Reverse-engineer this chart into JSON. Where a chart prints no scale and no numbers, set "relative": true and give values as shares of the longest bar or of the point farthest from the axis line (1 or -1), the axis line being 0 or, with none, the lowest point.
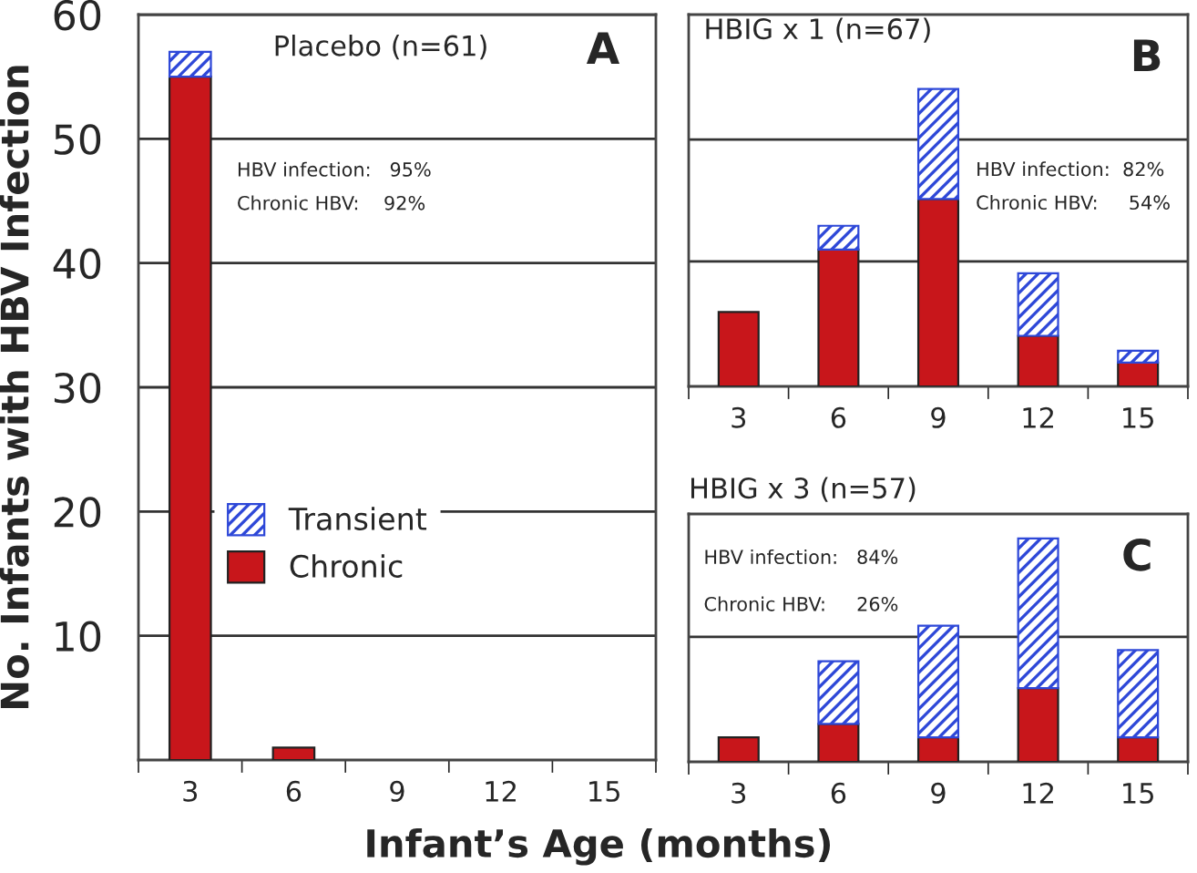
{
  "chart_data": [
    {
      "type": "bar",
      "title": "Placebo (n=61)",
      "xlabel": "Infant’s Age (months)",
      "ylabel": "No. Infants with HBV Infection",
      "categories": [
        "3",
        "6",
        "9",
        "12",
        "15"
      ],
      "stacked": true,
      "series": [
        {
          "name": "Chronic",
          "color": "#c8161b",
          "values": [
            55,
            1,
            0,
            0,
            0
          ]
        },
        {
          "name": "Transient",
          "color": "#2e48d8",
          "values": [
            2,
            0,
            0,
            0,
            0
          ]
        }
      ],
      "ylim": [
        0,
        60
      ],
      "yticks": [
        10,
        20,
        30,
        40,
        50,
        60
      ],
      "grid": "y",
      "legend": "lower left",
      "annotations": [
        "A",
        "HBV infection:   95%",
        "Chronic HBV:    92%"
      ]
    },
    {
      "type": "bar",
      "title": "HBIG x 1 (n=67)",
      "categories": [
        "3",
        "6",
        "9",
        "12",
        "15"
      ],
      "stacked": true,
      "relative": true,
      "series": [
        {
          "color": "#c8161b",
          "values": [
            0.25,
            0.46,
            0.63,
            0.17,
            0.08
          ]
        },
        {
          "color": "#2e48d8",
          "values": [
            0,
            0.08,
            0.37,
            0.21,
            0.04
          ]
        }
      ],
      "ref_lines": [
        {
          "axis": "y",
          "value": 0.42
        },
        {
          "axis": "y",
          "value": 0.83
        }
      ],
      "annotations": [
        "B",
        "HBV infection:  82%",
        "Chronic HBV:     54%"
      ]
    },
    {
      "type": "bar",
      "title": "HBIG x 3 (n=57)",
      "categories": [
        "3",
        "6",
        "9",
        "12",
        "15"
      ],
      "stacked": true,
      "relative": true,
      "series": [
        {
          "color": "#c8161b",
          "values": [
            0.11,
            0.17,
            0.11,
            0.33,
            0.11
          ]
        },
        {
          "color": "#2e48d8",
          "values": [
            0,
            0.28,
            0.5,
            0.67,
            0.39
          ]
        }
      ],
      "ref_lines": [
        {
          "axis": "y",
          "value": 0.56
        }
      ],
      "annotations": [
        "C",
        "HBV infection:   84%",
        "Chronic HBV:     26%"
      ]
    }
  ]
}
